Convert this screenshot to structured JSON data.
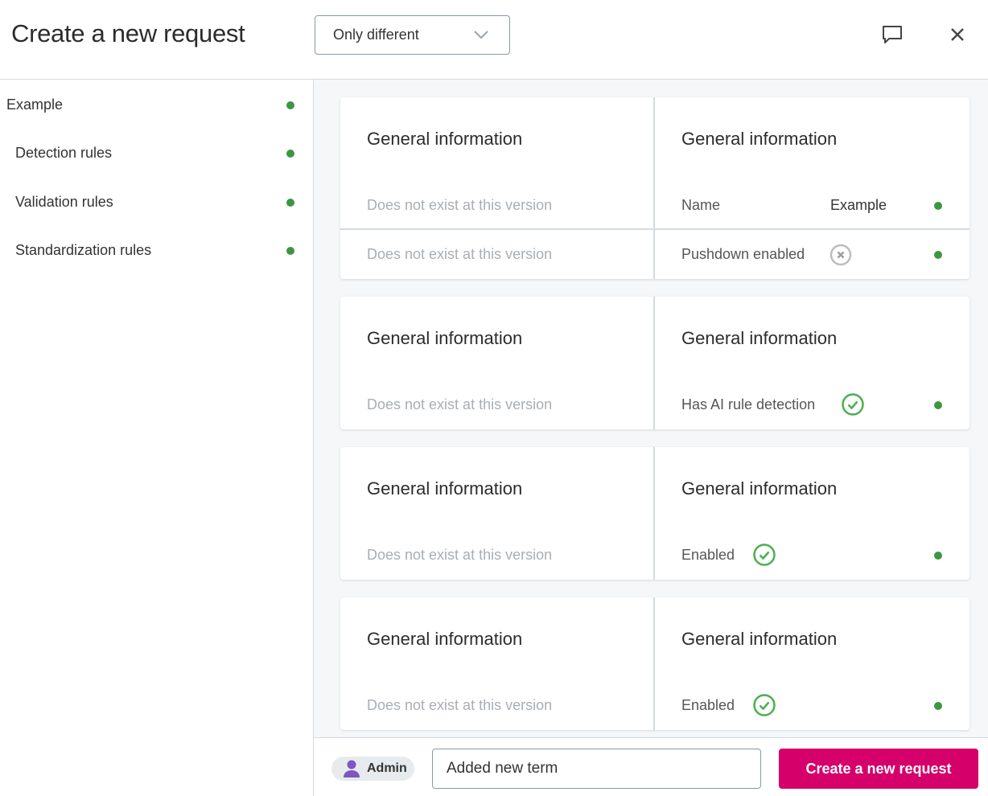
{
  "header": {
    "title": "Create a new request",
    "filter": {
      "selected": "Only different"
    },
    "comment_icon": "comment-icon",
    "close_icon": "close-icon"
  },
  "sidebar": {
    "items": [
      {
        "label": "Example",
        "status": "green"
      },
      {
        "label": "Detection rules",
        "status": "green"
      },
      {
        "label": "Validation rules",
        "status": "green"
      },
      {
        "label": "Standardization rules",
        "status": "green"
      }
    ]
  },
  "colors": {
    "status_green": "#3d9642",
    "accent": "#d6006a",
    "check_green": "#4caf50"
  },
  "cards": [
    {
      "left_heading": "General information",
      "right_heading": "General information",
      "rows": [
        {
          "left": "Does not exist at this version",
          "label": "Name",
          "value": "Example"
        },
        {
          "left": "Does not exist at this version",
          "label": "Pushdown enabled",
          "icon": "x-circle-icon"
        }
      ]
    },
    {
      "left_heading": "General information",
      "right_heading": "General information",
      "rows": [
        {
          "left": "Does not exist at this version",
          "label": "Has AI rule detection",
          "icon": "check-circle-icon"
        }
      ]
    },
    {
      "left_heading": "General information",
      "right_heading": "General information",
      "rows": [
        {
          "left": "Does not exist at this version",
          "label": "Enabled",
          "icon": "check-circle-icon"
        }
      ]
    },
    {
      "left_heading": "General information",
      "right_heading": "General information",
      "rows": [
        {
          "left": "Does not exist at this version",
          "label": "Enabled",
          "icon": "check-circle-icon"
        }
      ]
    }
  ],
  "footer": {
    "user": "Admin",
    "comment_value": "Added new term",
    "submit_label": "Create a new request"
  }
}
